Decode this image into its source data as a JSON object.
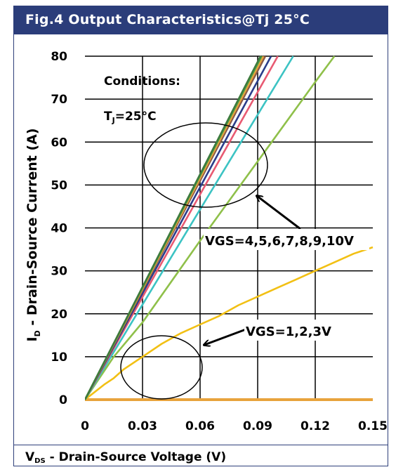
{
  "figure_title": "Fig.4 Output Characteristics@Tj 25°C",
  "x_label_main": "V",
  "x_label_sub": "DS",
  "x_label_rest": " - Drain-Source Voltage (V)",
  "chart_data": {
    "type": "line",
    "title": "Fig.4 Output Characteristics@Tj 25°C",
    "xlabel": "VDS - Drain-Source Voltage (V)",
    "ylabel": "ID - Drain-Source Current (A)",
    "xlim": [
      0,
      0.15
    ],
    "ylim": [
      0,
      80
    ],
    "x_ticks": [
      0,
      0.03,
      0.06,
      0.09,
      0.12,
      0.15
    ],
    "x_tick_labels": [
      "0",
      "0.03",
      "0.06",
      "0.09",
      "0.12",
      "0.15"
    ],
    "y_ticks": [
      0,
      10,
      20,
      30,
      40,
      50,
      60,
      70,
      80
    ],
    "y_tick_labels": [
      "0",
      "10",
      "20",
      "30",
      "40",
      "50",
      "60",
      "70",
      "80"
    ],
    "grid": true,
    "series": [
      {
        "color": "#e8a33c",
        "x": [
          0,
          0.15
        ],
        "y": [
          0,
          0
        ]
      },
      {
        "color": "#f2c014",
        "x": [
          0,
          0.01,
          0.015,
          0.02,
          0.03,
          0.04,
          0.05,
          0.06,
          0.07,
          0.08,
          0.09,
          0.1,
          0.11,
          0.12,
          0.13,
          0.14,
          0.15
        ],
        "y": [
          0,
          3.5,
          5,
          7,
          10,
          13,
          15.5,
          17.5,
          19.5,
          22,
          24,
          26,
          28,
          30,
          32,
          34,
          35.5
        ]
      },
      {
        "color": "#8fc04a",
        "x": [
          0,
          0.015,
          0.03,
          0.06,
          0.09,
          0.12,
          0.13
        ],
        "y": [
          0,
          10,
          18,
          37,
          55.5,
          74,
          80
        ]
      },
      {
        "color": "#3cc3c3",
        "x": [
          0,
          0.06,
          0.1085
        ],
        "y": [
          0,
          44.3,
          80
        ]
      },
      {
        "color": "#e85a72",
        "x": [
          0,
          0.06,
          0.1005
        ],
        "y": [
          0,
          47.8,
          80
        ]
      },
      {
        "color": "#2b3d8a",
        "x": [
          0,
          0.06,
          0.097
        ],
        "y": [
          0,
          49.5,
          80
        ]
      },
      {
        "color": "#8a5a46",
        "x": [
          0,
          0.06,
          0.094
        ],
        "y": [
          0,
          51,
          80
        ]
      },
      {
        "color": "#e8a33c",
        "x": [
          0,
          0.06,
          0.093
        ],
        "y": [
          0,
          51.6,
          80
        ]
      },
      {
        "color": "#4aa64a",
        "x": [
          0,
          0.06,
          0.092
        ],
        "y": [
          0,
          52.2,
          80
        ]
      },
      {
        "color": "#3d7a3d",
        "x": [
          0,
          0.06,
          0.0915
        ],
        "y": [
          0,
          52.5,
          80
        ]
      }
    ],
    "annotations": [
      {
        "text": "Conditions:"
      },
      {
        "text_main": "T",
        "text_sub": "J",
        "text_rest": "=25°C"
      },
      {
        "text": "VGS=4,5,6,7,8,9,10V"
      },
      {
        "text": "VGS=1,2,3V"
      }
    ]
  }
}
